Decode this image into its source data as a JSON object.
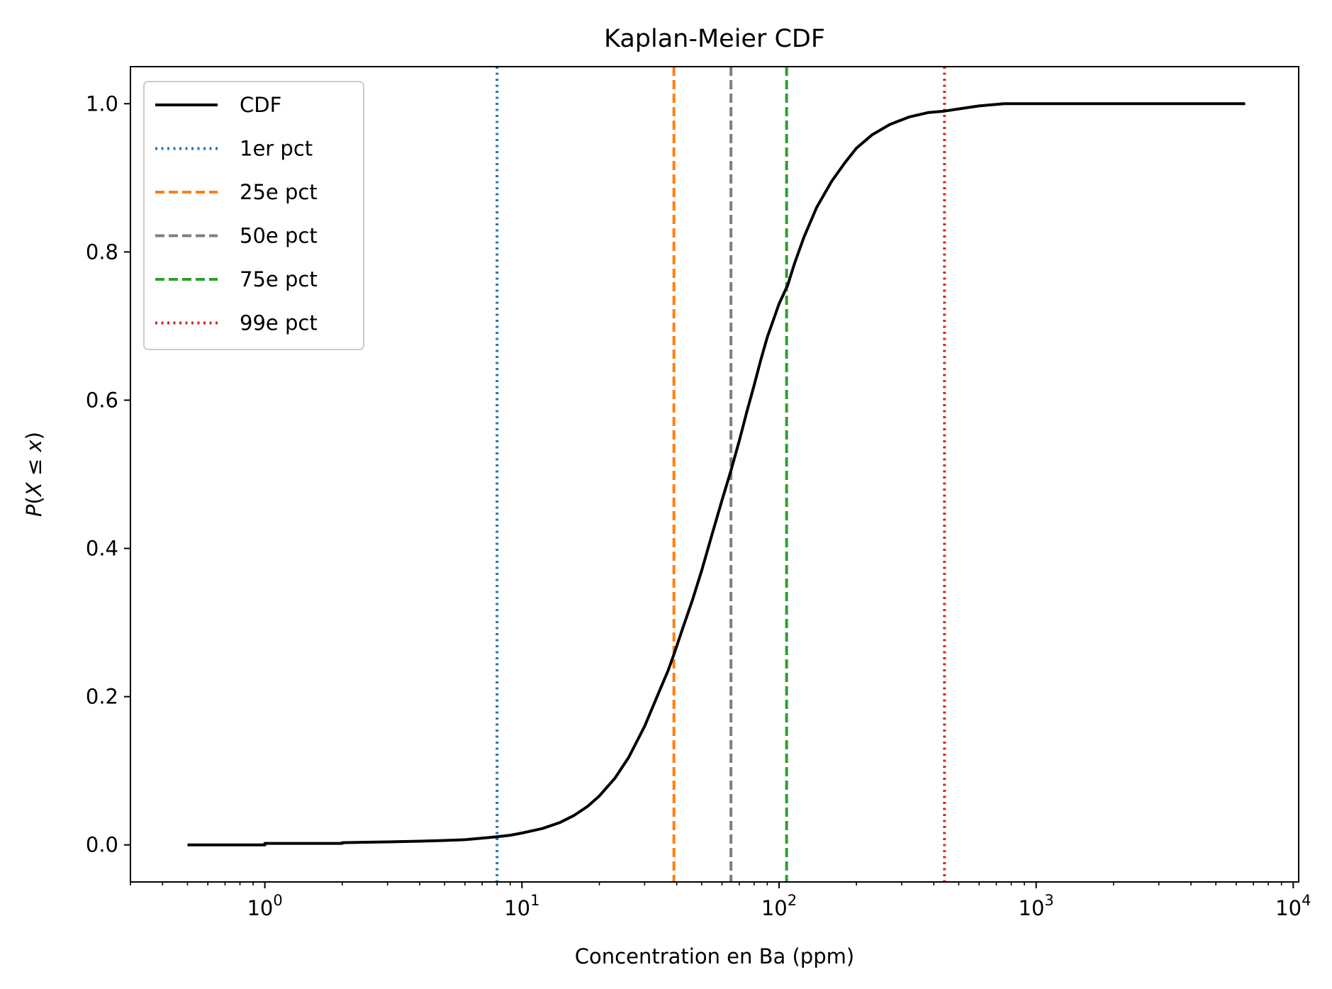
{
  "chart_data": {
    "type": "line",
    "title": "Kaplan-Meier CDF",
    "xlabel": "Concentration en Ba (ppm)",
    "ylabel": "P(X ≤ x)",
    "ylabel_parts": {
      "p": "P",
      "open": "(",
      "X": "X",
      "le": " ≤ ",
      "x": "x",
      "close": ")"
    },
    "xscale": "log",
    "xlim": [
      0.3,
      10500
    ],
    "ylim": [
      -0.05,
      1.05
    ],
    "x_ticks": [
      {
        "value": 1,
        "base": "10",
        "exp": "0"
      },
      {
        "value": 10,
        "base": "10",
        "exp": "1"
      },
      {
        "value": 100,
        "base": "10",
        "exp": "2"
      },
      {
        "value": 1000,
        "base": "10",
        "exp": "3"
      },
      {
        "value": 10000,
        "base": "10",
        "exp": "4"
      }
    ],
    "y_ticks": [
      {
        "value": 0.0,
        "label": "0.0"
      },
      {
        "value": 0.2,
        "label": "0.2"
      },
      {
        "value": 0.4,
        "label": "0.4"
      },
      {
        "value": 0.6,
        "label": "0.6"
      },
      {
        "value": 0.8,
        "label": "0.8"
      },
      {
        "value": 1.0,
        "label": "1.0"
      }
    ],
    "grid": false,
    "legend_position": "top-left",
    "series": [
      {
        "name": "CDF",
        "color": "#000000",
        "style": "solid",
        "points": [
          [
            0.5,
            0.0
          ],
          [
            1.0,
            0.0
          ],
          [
            1.0,
            0.002
          ],
          [
            2.0,
            0.002
          ],
          [
            2.0,
            0.003
          ],
          [
            3.0,
            0.004
          ],
          [
            4.0,
            0.005
          ],
          [
            5.0,
            0.006
          ],
          [
            6.0,
            0.007
          ],
          [
            7.0,
            0.009
          ],
          [
            8.0,
            0.011
          ],
          [
            9.0,
            0.013
          ],
          [
            10.0,
            0.016
          ],
          [
            12.0,
            0.022
          ],
          [
            14.0,
            0.03
          ],
          [
            16.0,
            0.04
          ],
          [
            18.0,
            0.052
          ],
          [
            20.0,
            0.066
          ],
          [
            23.0,
            0.09
          ],
          [
            26.0,
            0.118
          ],
          [
            30.0,
            0.16
          ],
          [
            34.0,
            0.205
          ],
          [
            37.0,
            0.235
          ],
          [
            39.0,
            0.257
          ],
          [
            42.0,
            0.29
          ],
          [
            46.0,
            0.33
          ],
          [
            50.0,
            0.37
          ],
          [
            55.0,
            0.42
          ],
          [
            60.0,
            0.465
          ],
          [
            65.0,
            0.505
          ],
          [
            70.0,
            0.545
          ],
          [
            75.0,
            0.585
          ],
          [
            80.0,
            0.62
          ],
          [
            85.0,
            0.655
          ],
          [
            90.0,
            0.685
          ],
          [
            100.0,
            0.73
          ],
          [
            108.0,
            0.755
          ],
          [
            115.0,
            0.785
          ],
          [
            125.0,
            0.82
          ],
          [
            140.0,
            0.86
          ],
          [
            160.0,
            0.895
          ],
          [
            180.0,
            0.92
          ],
          [
            200.0,
            0.94
          ],
          [
            230.0,
            0.958
          ],
          [
            270.0,
            0.972
          ],
          [
            320.0,
            0.982
          ],
          [
            380.0,
            0.988
          ],
          [
            440.0,
            0.99
          ],
          [
            500.0,
            0.993
          ],
          [
            600.0,
            0.997
          ],
          [
            750.0,
            1.0
          ],
          [
            6500.0,
            1.0
          ]
        ]
      }
    ],
    "percentiles": [
      {
        "name": "1er pct",
        "x": 8,
        "color": "#1f77b4",
        "style": "dotted"
      },
      {
        "name": "25e pct",
        "x": 39,
        "color": "#ff7f0e",
        "style": "dashed"
      },
      {
        "name": "50e pct",
        "x": 65,
        "color": "#7f7f7f",
        "style": "dashed"
      },
      {
        "name": "75e pct",
        "x": 107,
        "color": "#2ca02c",
        "style": "dashed"
      },
      {
        "name": "99e pct",
        "x": 440,
        "color": "#d62728",
        "style": "dotted"
      }
    ]
  }
}
